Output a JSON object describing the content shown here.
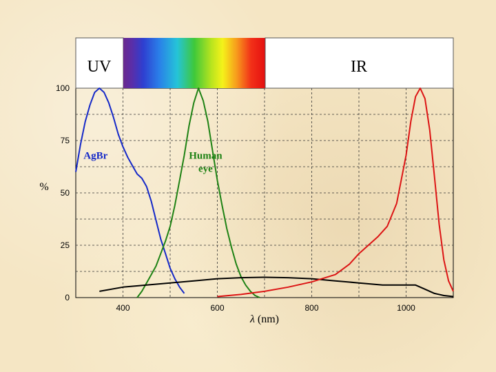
{
  "chart_data": {
    "type": "line",
    "xlabel_symbol": "λ",
    "xlabel_unit": "(nm)",
    "ylabel": "%",
    "xlim": [
      300,
      1100
    ],
    "ylim": [
      0,
      100
    ],
    "x_ticks": [
      400,
      600,
      800,
      1000
    ],
    "y_ticks": [
      0,
      25,
      50,
      75,
      100
    ],
    "bands": {
      "uv": "UV",
      "ir": "IR"
    },
    "grid": true,
    "series": [
      {
        "name": "AgBr",
        "color": "#1428c8",
        "x": [
          300,
          310,
          320,
          330,
          340,
          350,
          360,
          370,
          380,
          390,
          400,
          410,
          420,
          430,
          440,
          450,
          460,
          470,
          480,
          490,
          500,
          510,
          520,
          530
        ],
        "y": [
          60,
          73,
          84,
          92,
          98,
          100,
          98,
          93,
          86,
          78,
          72,
          67,
          63,
          59,
          57,
          53,
          46,
          37,
          28,
          21,
          14,
          9,
          5,
          2
        ]
      },
      {
        "name": "Human eye",
        "color": "#1e8214",
        "x": [
          430,
          440,
          450,
          460,
          470,
          480,
          490,
          500,
          510,
          520,
          530,
          540,
          550,
          560,
          570,
          580,
          590,
          600,
          610,
          620,
          630,
          640,
          650,
          660,
          670,
          680,
          690
        ],
        "y": [
          0,
          3,
          7,
          11,
          15,
          21,
          27,
          34,
          44,
          56,
          68,
          82,
          93,
          100,
          94,
          84,
          70,
          56,
          44,
          33,
          24,
          16,
          10,
          6,
          3,
          1,
          0
        ]
      },
      {
        "name": "",
        "color": "#000000",
        "x": [
          350,
          400,
          450,
          500,
          550,
          600,
          650,
          700,
          750,
          800,
          850,
          900,
          950,
          1000,
          1020,
          1040,
          1060,
          1080,
          1100
        ],
        "y": [
          3,
          5,
          6,
          7,
          8,
          9,
          9.5,
          9.7,
          9.5,
          9,
          8,
          7,
          6,
          6,
          6,
          4,
          2,
          1,
          0.5
        ]
      },
      {
        "name": "",
        "color": "#dc1414",
        "x": [
          600,
          650,
          700,
          750,
          800,
          850,
          880,
          900,
          920,
          940,
          960,
          980,
          1000,
          1010,
          1020,
          1030,
          1040,
          1050,
          1060,
          1070,
          1080,
          1090,
          1100
        ],
        "y": [
          0.5,
          1.5,
          3,
          5,
          7.5,
          11,
          16,
          21,
          25,
          29,
          34,
          45,
          68,
          84,
          96,
          100,
          95,
          80,
          58,
          35,
          18,
          8,
          3
        ]
      }
    ],
    "labels": [
      {
        "series": "AgBr",
        "lines": [
          "AgBr"
        ],
        "x": 342,
        "y": 68
      },
      {
        "series": "Human eye",
        "lines": [
          "Human",
          "eye"
        ],
        "x": 575,
        "y": 68
      }
    ]
  }
}
